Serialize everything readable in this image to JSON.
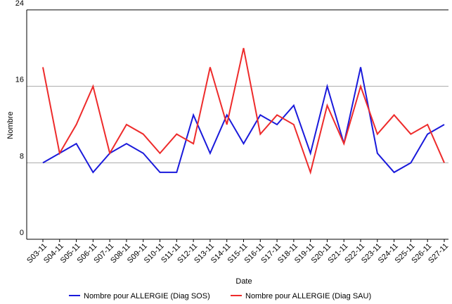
{
  "chart_data": {
    "type": "line",
    "x_label": "Date",
    "y_label": "Nombre",
    "categories": [
      "S03-11",
      "S04-11",
      "S05-11",
      "S06-11",
      "S07-11",
      "S08-11",
      "S09-11",
      "S10-11",
      "S11-11",
      "S12-11",
      "S13-11",
      "S14-11",
      "S15-11",
      "S16-11",
      "S17-11",
      "S18-11",
      "S19-11",
      "S20-11",
      "S21-11",
      "S22-11",
      "S23-11",
      "S24-11",
      "S25-11",
      "S26-11",
      "S27-11"
    ],
    "series": [
      {
        "name": "Nombre pour ALLERGIE (Diag SOS)",
        "color": "#1a1adb",
        "values": [
          8,
          9,
          10,
          7,
          9,
          10,
          9,
          7,
          7,
          13,
          9,
          13,
          10,
          13,
          12,
          14,
          9,
          16,
          10,
          18,
          9,
          7,
          8,
          11,
          12
        ]
      },
      {
        "name": "Nombre pour ALLERGIE (Diag SAU)",
        "color": "#ee2b2b",
        "values": [
          18,
          9,
          12,
          16,
          9,
          12,
          11,
          9,
          11,
          10,
          18,
          12,
          20,
          11,
          13,
          12,
          7,
          14,
          10,
          16,
          11,
          13,
          11,
          12,
          8
        ]
      }
    ],
    "ylim": [
      0,
      24
    ],
    "yticks": [
      0,
      8,
      16,
      24
    ],
    "grid": true,
    "legend": "bottom"
  }
}
